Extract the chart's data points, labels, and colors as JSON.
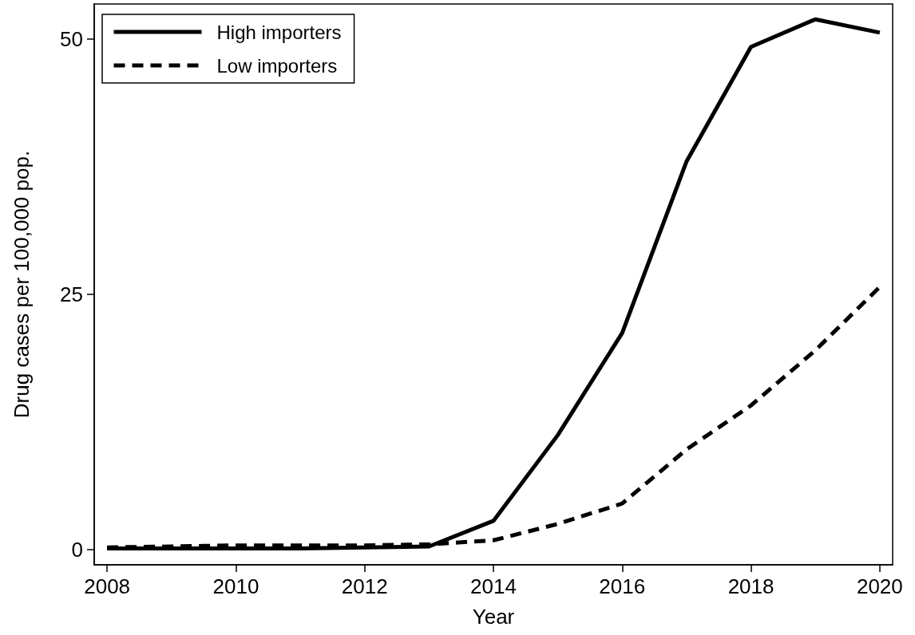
{
  "chart_data": {
    "type": "line",
    "xlabel": "Year",
    "ylabel": "Drug cases per 100,000 pop.",
    "x": [
      2008,
      2009,
      2010,
      2011,
      2012,
      2013,
      2014,
      2015,
      2016,
      2017,
      2018,
      2019,
      2020
    ],
    "series": [
      {
        "name": "High importers",
        "color": "#000000",
        "line_style": "solid",
        "values": [
          0.1,
          0.1,
          0.1,
          0.1,
          0.2,
          0.3,
          2.8,
          11.2,
          21.2,
          38.0,
          49.2,
          51.9,
          50.6
        ]
      },
      {
        "name": "Low importers",
        "color": "#000000",
        "line_style": "dashed",
        "values": [
          0.2,
          0.3,
          0.4,
          0.4,
          0.4,
          0.5,
          0.9,
          2.5,
          4.5,
          9.8,
          14.1,
          19.5,
          25.7
        ]
      }
    ],
    "xlim": [
      2007.8,
      2020.2
    ],
    "xticks": [
      2008,
      2010,
      2012,
      2014,
      2016,
      2018,
      2020
    ],
    "ylim": [
      -1.5,
      53.4
    ],
    "yticks": [
      0,
      25,
      50
    ],
    "grid": false,
    "legend": "top left",
    "marker": "none"
  }
}
